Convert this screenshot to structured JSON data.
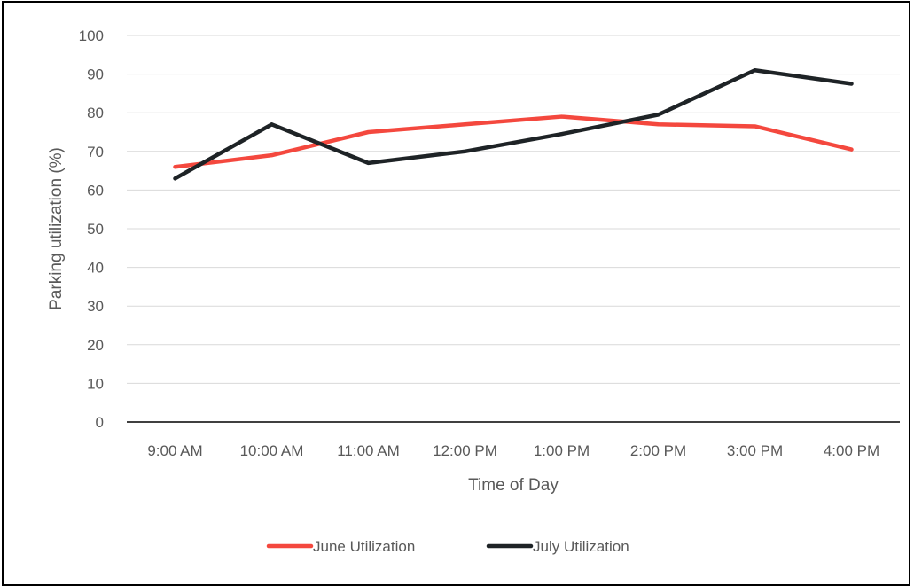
{
  "chart_data": {
    "type": "line",
    "title": "",
    "xlabel": "Time of Day",
    "ylabel": "Parking utilization (%)",
    "categories": [
      "9:00 AM",
      "10:00 AM",
      "11:00 AM",
      "12:00 PM",
      "1:00 PM",
      "2:00 PM",
      "3:00 PM",
      "4:00 PM"
    ],
    "ylim": [
      0,
      100
    ],
    "yticks": [
      0,
      10,
      20,
      30,
      40,
      50,
      60,
      70,
      80,
      90,
      100
    ],
    "grid": true,
    "legend_position": "bottom",
    "series": [
      {
        "name": "June Utilization",
        "color": "#f4483e",
        "values": [
          66,
          69,
          75,
          77,
          79,
          77,
          76.5,
          70.5
        ]
      },
      {
        "name": "July Utilization",
        "color": "#1e2326",
        "values": [
          63,
          77,
          67,
          70,
          74.5,
          79.5,
          91,
          87.5
        ]
      }
    ]
  }
}
